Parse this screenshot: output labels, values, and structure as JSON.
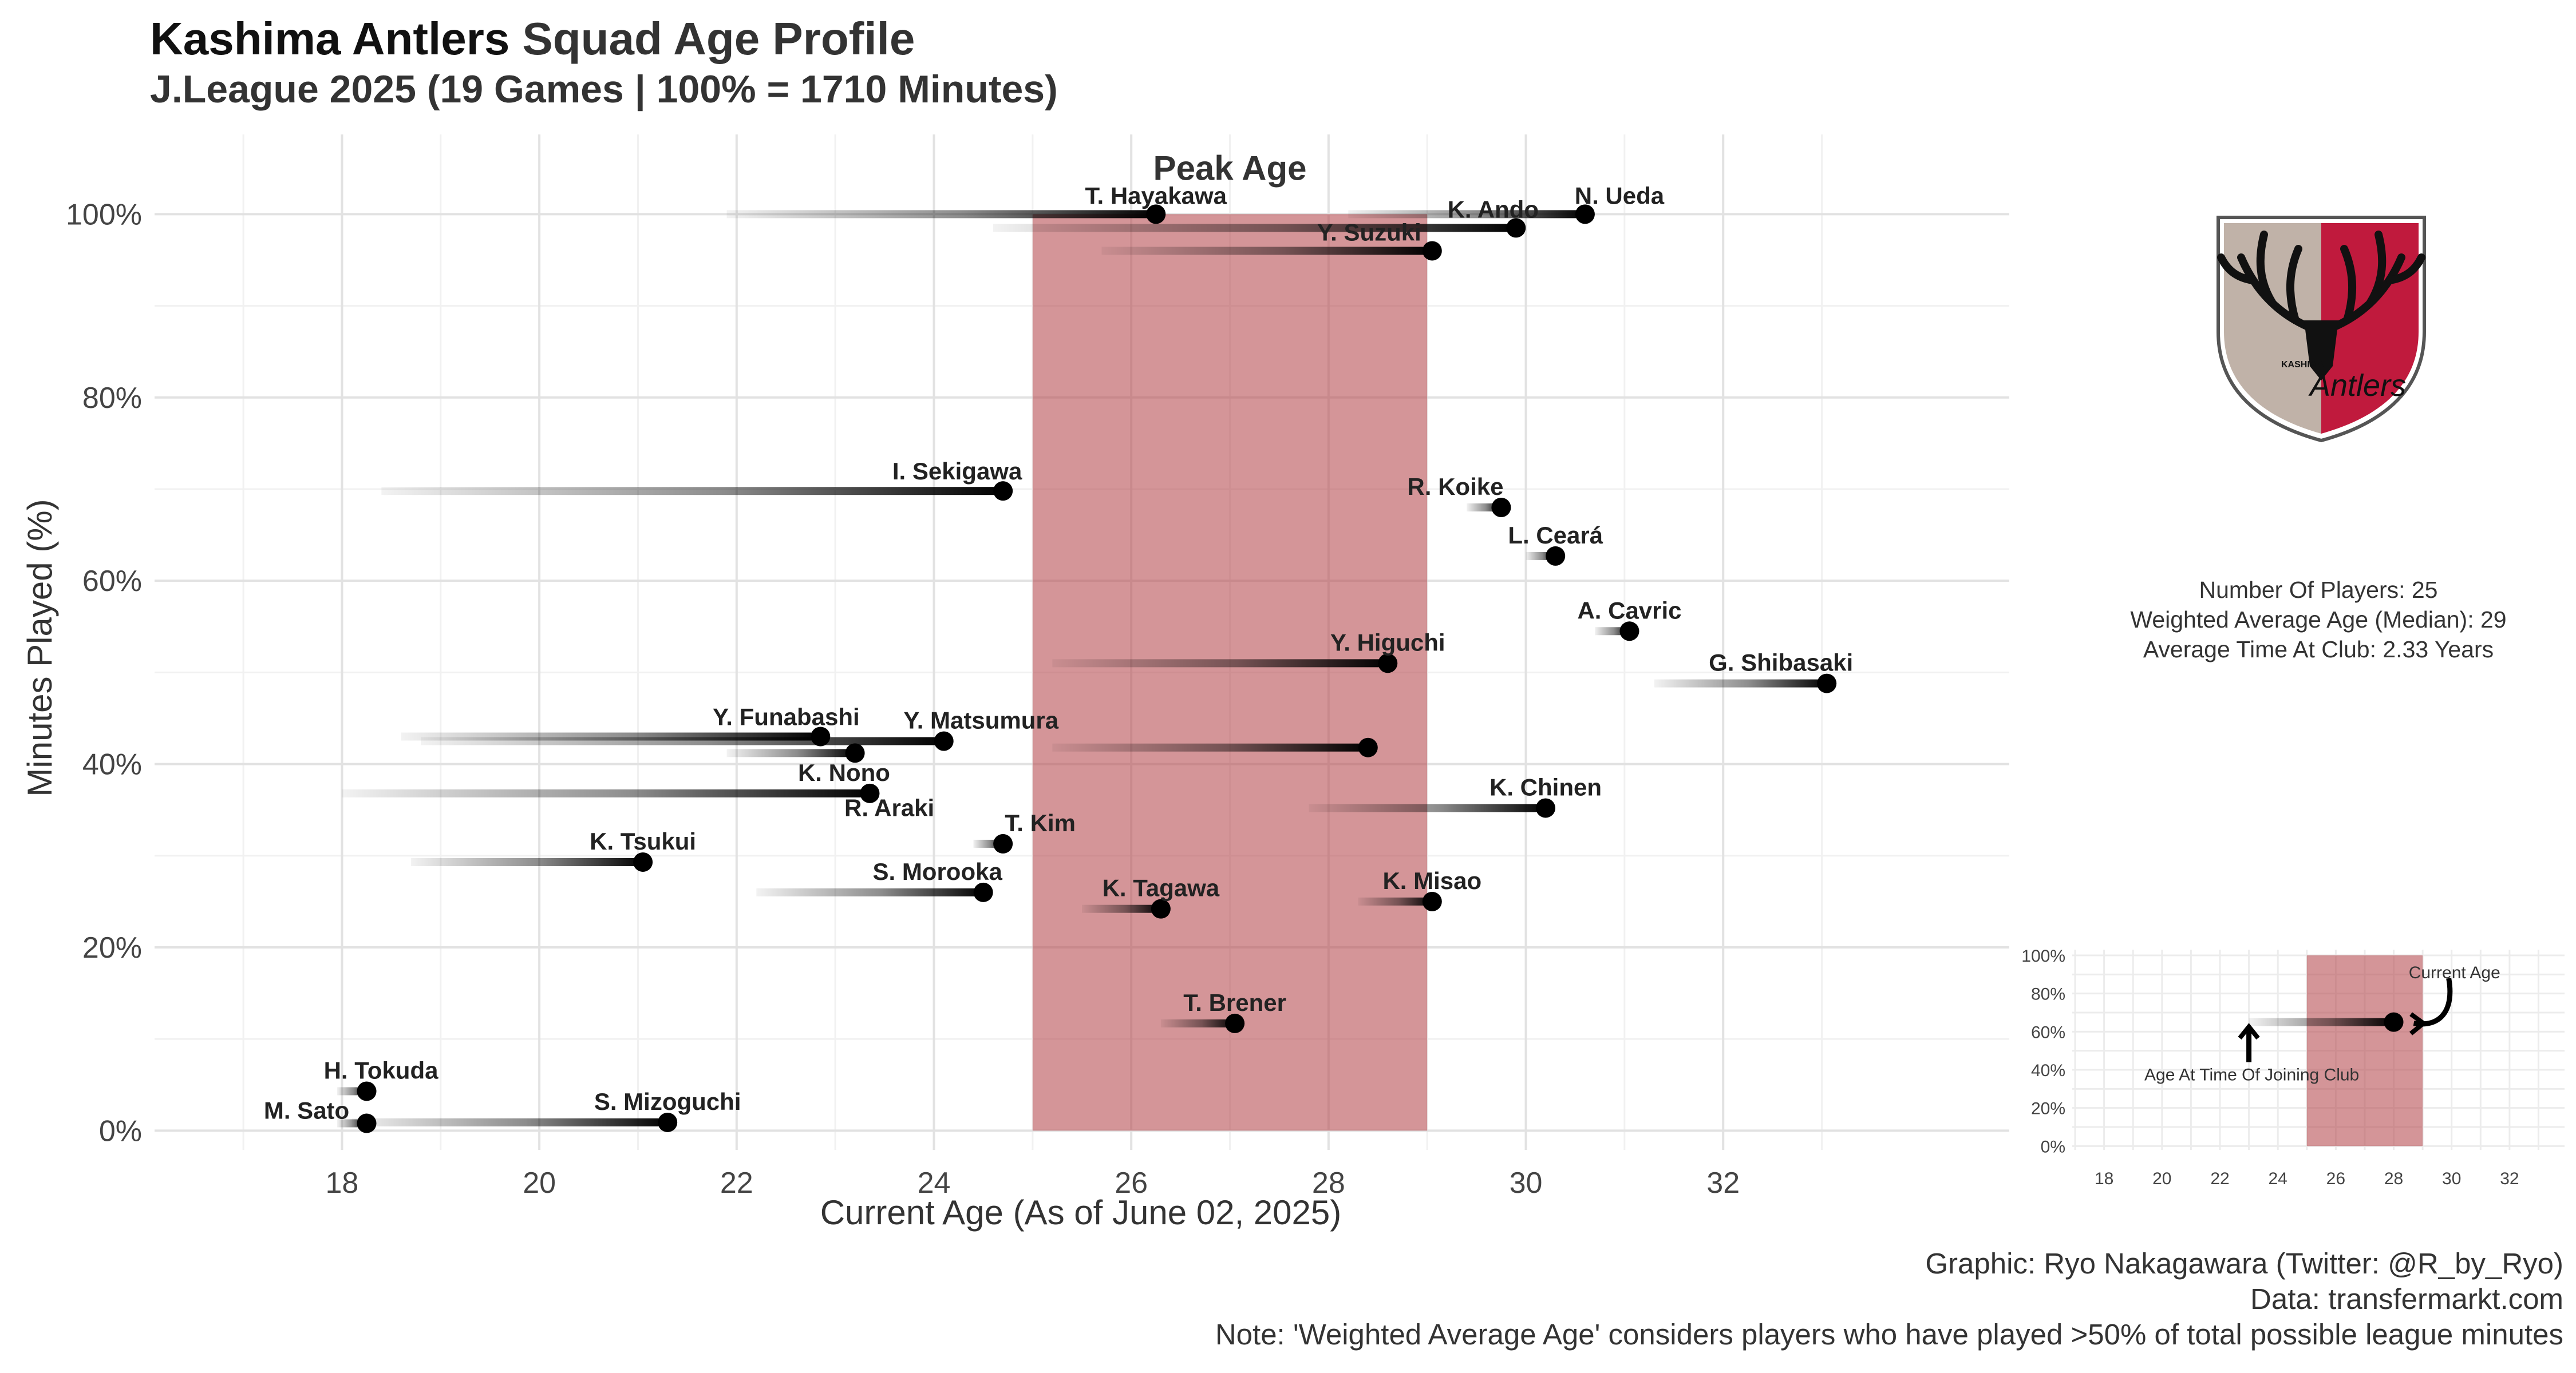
{
  "header": {
    "team": "Kashima Antlers",
    "title_rest": "Squad Age Profile",
    "subtitle": "J.League 2025 (19 Games | 100% = 1710 Minutes)"
  },
  "chart_data": [
    {
      "type": "scatter",
      "title": "",
      "xlabel": "Current Age (As of June 02, 2025)",
      "ylabel": "Minutes Played (%)",
      "xlim": [
        16.1,
        34.9
      ],
      "ylim": [
        -2.1,
        108.7
      ],
      "x_ticks": [
        18,
        20,
        22,
        24,
        26,
        28,
        30,
        32
      ],
      "x_tick_labels": [
        "18",
        "20",
        "22",
        "24",
        "26",
        "28",
        "30",
        "32"
      ],
      "y_ticks": [
        0,
        20,
        40,
        60,
        80,
        100
      ],
      "y_tick_labels": [
        "0%",
        "20%",
        "40%",
        "60%",
        "80%",
        "100%"
      ],
      "grid": true,
      "peak_age": {
        "label": "Peak Age",
        "from": 25,
        "to": 29,
        "color": "#b5494e"
      },
      "series": [
        {
          "values": [
            {
              "name": "T. Hayakawa",
              "join_age": 21.9,
              "age": 26.25,
              "minutes_pct": 100.0
            },
            {
              "name": "N. Ueda",
              "join_age": 28.2,
              "age": 30.6,
              "minutes_pct": 100.0
            },
            {
              "name": "K. Ando",
              "join_age": 24.6,
              "age": 29.9,
              "minutes_pct": 98.5
            },
            {
              "name": "Y. Suzuki",
              "join_age": 25.7,
              "age": 29.05,
              "minutes_pct": 96.0
            },
            {
              "name": "I. Sekigawa",
              "join_age": 18.4,
              "age": 24.7,
              "minutes_pct": 69.8
            },
            {
              "name": "R. Koike",
              "join_age": 29.4,
              "age": 29.75,
              "minutes_pct": 68.0
            },
            {
              "name": "L. Ceará",
              "join_age": 30.0,
              "age": 30.3,
              "minutes_pct": 62.7
            },
            {
              "name": "A. Cavric",
              "join_age": 30.7,
              "age": 31.05,
              "minutes_pct": 54.5
            },
            {
              "name": "Y. Higuchi",
              "join_age": 25.2,
              "age": 28.6,
              "minutes_pct": 51.0
            },
            {
              "name": "G. Shibasaki",
              "join_age": 31.3,
              "age": 33.05,
              "minutes_pct": 48.8
            },
            {
              "name": "Y. Funabashi",
              "join_age": 18.6,
              "age": 22.85,
              "minutes_pct": 43.0
            },
            {
              "name": "Y. Matsumura",
              "join_age": 18.8,
              "age": 24.1,
              "minutes_pct": 42.5
            },
            {
              "name": "R. Araki",
              "join_age": 21.9,
              "age": 23.2,
              "minutes_pct": 41.2
            },
            {
              "name": "K. Nono",
              "join_age": 18.0,
              "age": 23.35,
              "minutes_pct": 36.8
            },
            {
              "name": "K. Chinen",
              "join_age": 27.8,
              "age": 30.2,
              "minutes_pct": 35.2
            },
            {
              "name": "T. Kim",
              "join_age": 24.4,
              "age": 24.7,
              "minutes_pct": 31.3
            },
            {
              "name": "K. Tsukui",
              "join_age": 18.7,
              "age": 21.05,
              "minutes_pct": 29.3
            },
            {
              "name": "S. Morooka",
              "join_age": 22.2,
              "age": 24.5,
              "minutes_pct": 26.0
            },
            {
              "name": "K. Tagawa",
              "join_age": 25.5,
              "age": 26.3,
              "minutes_pct": 24.2
            },
            {
              "name": "K. Misao",
              "join_age": 28.3,
              "age": 29.05,
              "minutes_pct": 25.0
            },
            {
              "name": "T. Brener",
              "join_age": 26.3,
              "age": 27.05,
              "minutes_pct": 11.7
            },
            {
              "name": "H. Tokuda",
              "join_age": 17.95,
              "age": 18.25,
              "minutes_pct": 4.3
            },
            {
              "name": "M. Sato",
              "join_age": 17.95,
              "age": 18.25,
              "minutes_pct": 0.8
            },
            {
              "name": "S. Mizoguchi",
              "join_age": 18.1,
              "age": 21.3,
              "minutes_pct": 0.9
            },
            {
              "name": "",
              "join_age": 25.2,
              "age": 28.4,
              "minutes_pct": 41.8
            }
          ]
        }
      ]
    },
    {
      "type": "scatter",
      "title": "",
      "x_ticks": [
        18,
        20,
        22,
        24,
        26,
        28,
        30,
        32
      ],
      "x_tick_labels": [
        "18",
        "20",
        "22",
        "24",
        "26",
        "28",
        "30",
        "32"
      ],
      "y_ticks": [
        0,
        20,
        40,
        60,
        80,
        100
      ],
      "y_tick_labels": [
        "0%",
        "20%",
        "40%",
        "60%",
        "80%",
        "100%"
      ],
      "xlim": [
        16.9,
        33.9
      ],
      "ylim": [
        -2,
        103
      ],
      "grid": true,
      "peak_age": {
        "from": 25,
        "to": 29,
        "color": "#b5494e"
      },
      "example": {
        "join_age": 23.0,
        "age": 28.0,
        "minutes_pct": 65
      },
      "annotations": [
        "Current Age",
        "Age At Time Of Joining Club"
      ]
    }
  ],
  "stats": {
    "players": "Number Of Players: 25",
    "weighted_age": "Weighted Average Age (Median): 29",
    "time_at_club": "Average Time At Club: 2.33 Years"
  },
  "logo": {
    "name": "KASHIMA",
    "wordmark": "Antlers",
    "colors": {
      "left": "#c0b2a8",
      "right": "#c01a3d"
    }
  },
  "caption": {
    "line1": "Graphic: Ryo Nakagawara (Twitter: @R_by_Ryo)",
    "line2": "Data: transfermarkt.com",
    "line3": "Note: 'Weighted Average Age' considers players who have played >50% of total possible league minutes"
  }
}
